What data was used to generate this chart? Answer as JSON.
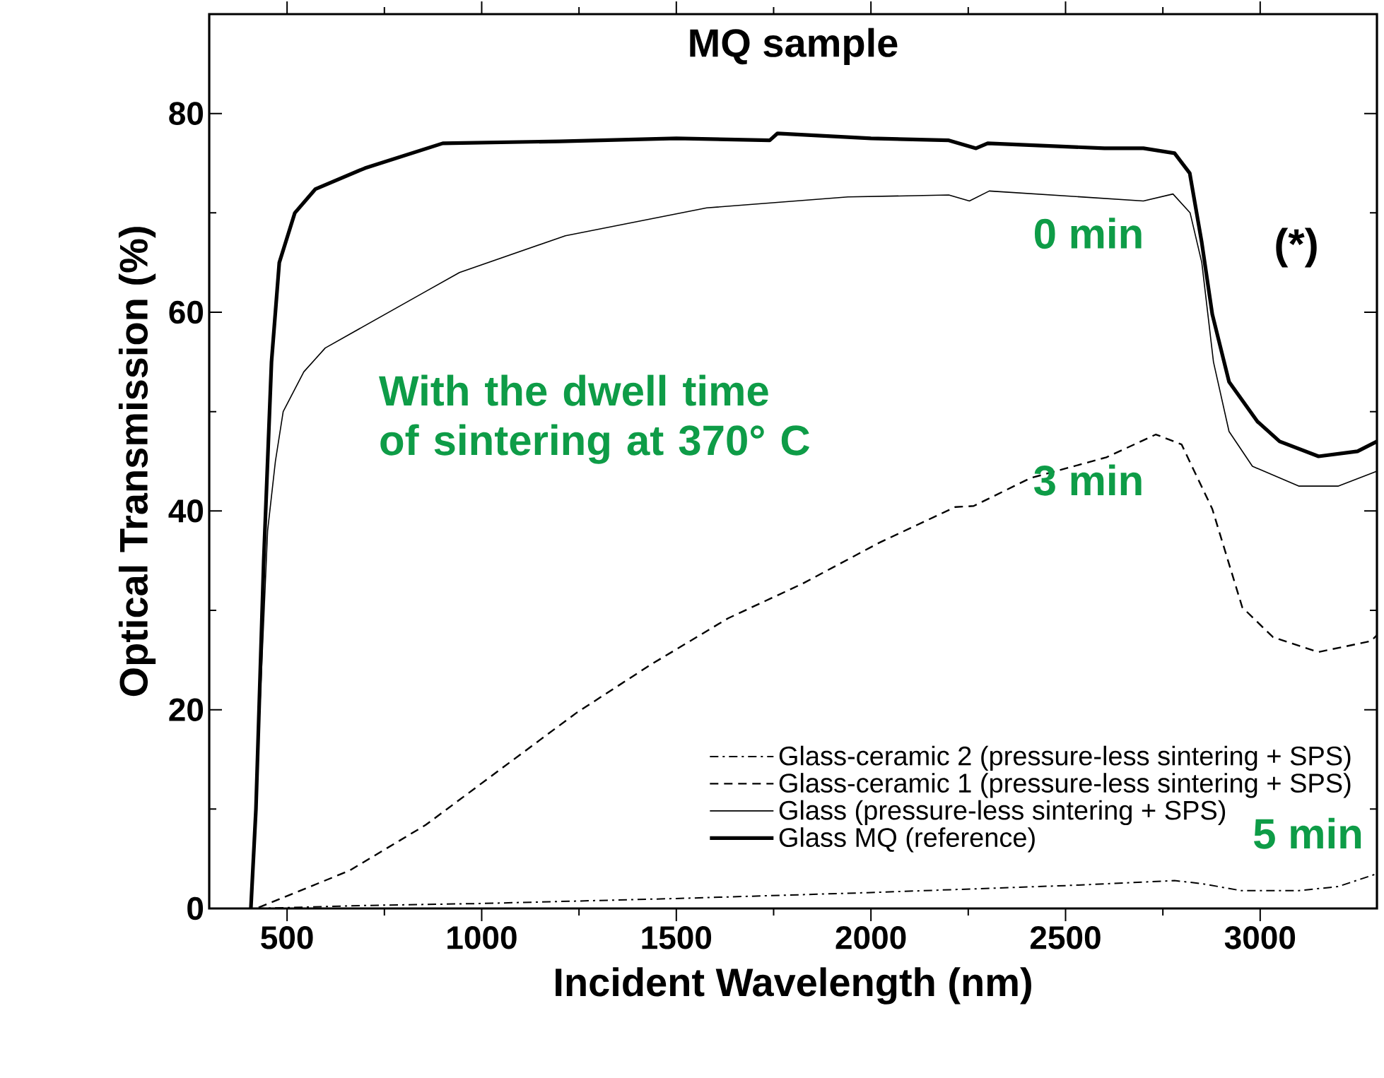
{
  "chart_data": {
    "type": "line",
    "title": "MQ sample",
    "xlabel": "Incident Wavelength (nm)",
    "ylabel": "Optical Transmission (%)",
    "xlim": [
      300,
      3300
    ],
    "ylim": [
      0,
      90
    ],
    "xticks": [
      500,
      1000,
      1500,
      2000,
      2500,
      3000
    ],
    "yticks": [
      0,
      20,
      40,
      60,
      80
    ],
    "legend": "bottom right",
    "grid": false,
    "series": [
      {
        "name": "Glass-ceramic 2 (pressure-less sintering + SPS)",
        "color": "#000000",
        "line_style": "dashdot",
        "x": [
          420,
          700,
          1000,
          1500,
          2000,
          2500,
          2780,
          2850,
          2950,
          3100,
          3200,
          3300
        ],
        "values": [
          0,
          0.3,
          0.5,
          1.0,
          1.6,
          2.3,
          2.8,
          2.5,
          1.8,
          1.8,
          2.2,
          3.5
        ]
      },
      {
        "name": "Glass-ceramic 1 (pressure-less sintering + SPS)",
        "color": "#000000",
        "line_style": "dashed",
        "x": [
          427,
          660,
          856,
          1048,
          1244,
          1437,
          1633,
          1825,
          2021,
          2217,
          2264,
          2409,
          2605,
          2732,
          2798,
          2877,
          2954,
          3033,
          3149,
          3284,
          3300
        ],
        "values": [
          0.1,
          3.8,
          8.4,
          14,
          19.7,
          24.6,
          29.2,
          32.7,
          36.8,
          40.4,
          40.5,
          43.3,
          45.4,
          47.7,
          46.7,
          40.2,
          30.3,
          27.3,
          25.8,
          26.9,
          27.5
        ]
      },
      {
        "name": "Glass (pressure-less sintering + SPS)",
        "color": "#000000",
        "line_style": "solid",
        "x": [
          407,
          430,
          450,
          470,
          490,
          543,
          598,
          852,
          943,
          1215,
          1578,
          1941,
          2200,
          2253,
          2304,
          2700,
          2776,
          2820,
          2850,
          2880,
          2920,
          2980,
          3100,
          3200,
          3300
        ],
        "values": [
          0,
          20,
          38,
          45,
          50,
          54,
          56.4,
          62,
          64,
          67.7,
          70.5,
          71.6,
          71.8,
          71.2,
          72.2,
          71.2,
          71.9,
          70,
          65,
          55,
          48,
          44.5,
          42.5,
          42.5,
          44
        ]
      },
      {
        "name": "Glass MQ (reference)",
        "color": "#000000",
        "line_style": "solid",
        "x": [
          407,
          420,
          440,
          460,
          480,
          520,
          573,
          700,
          900,
          1200,
          1500,
          1740,
          1760,
          2000,
          2200,
          2270,
          2300,
          2600,
          2700,
          2780,
          2819,
          2850,
          2877,
          2920,
          2993,
          3050,
          3150,
          3250,
          3300
        ],
        "values": [
          0,
          10,
          35,
          55,
          65,
          70,
          72.4,
          74.5,
          77,
          77.2,
          77.5,
          77.3,
          78,
          77.5,
          77.3,
          76.5,
          77,
          76.5,
          76.5,
          76,
          74,
          67,
          59.8,
          53,
          49,
          47,
          45.5,
          46,
          47
        ]
      }
    ],
    "annotations": [
      "0 min",
      "3 min",
      "5 min",
      "With the dwell time of sintering at 370° C",
      "(*)"
    ]
  }
}
